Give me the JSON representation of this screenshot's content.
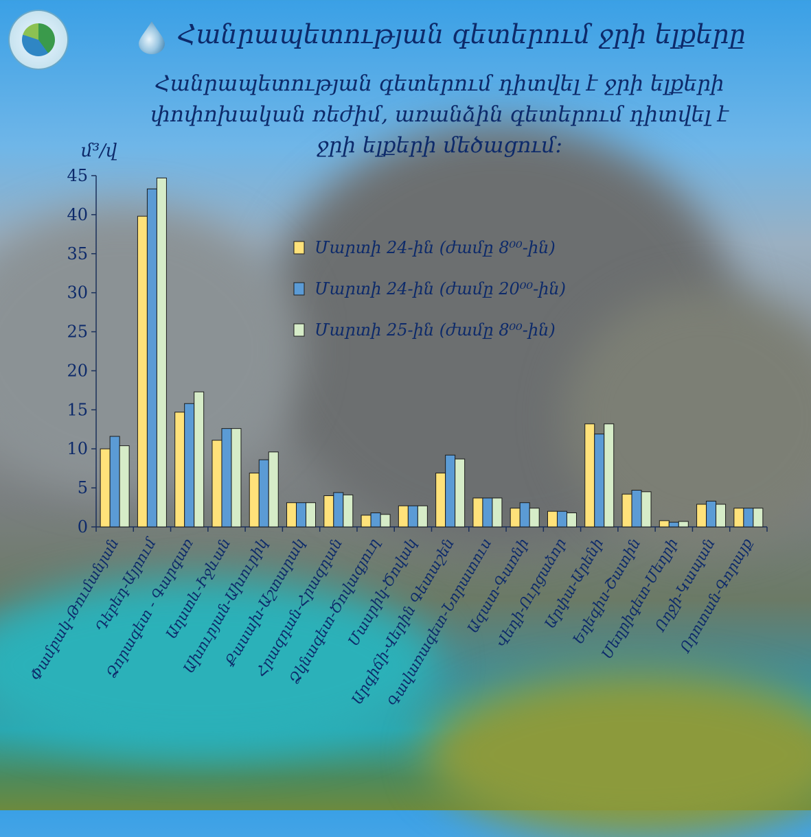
{
  "header": {
    "title": "Հանրապետության գետերում ջրի ելքերը",
    "subtitle": "Հանրապետության գետերում դիտվել է ջրի ելքերի փոփոխական ռեժիմ, առանձին գետերում դիտվել է ջրի ելքերի մեծացում:"
  },
  "unit_label": "մ³/վ",
  "chart_data": {
    "type": "bar",
    "title": "Հանրապետության գետերում ջրի ելքերը",
    "ylabel": "մ³/վ",
    "ylim": [
      0,
      45
    ],
    "yticks": [
      0,
      5,
      10,
      15,
      20,
      25,
      30,
      35,
      40,
      45
    ],
    "grid": false,
    "legend_position": "top-right",
    "categories": [
      "Փամբակ-Թումանյան",
      "Դեբեդ-Այրում",
      "Ձորագետ - Գարգառ",
      "Աղստև-Իջևան",
      "Ախուրյան-Ախուրիկ",
      "Քասախ-Աշտարակ",
      "Հրազդան-Հրազդան",
      "Ձկնագետ-Ծովագյուղ",
      "Մասրիկ-Ծովակ",
      "Արգիճի-Վերին Գետաշեն",
      "Գավառագետ-Նորատուս",
      "Ազատ-Գառնի",
      "Վեդի-Ուրցաձոր",
      "Արփա-Արենի",
      "Եղեգիս-Շատին",
      "Մեղրիգետ-Մեղրի",
      "Ողջի-Կապան",
      "Որոտան-Գորայք"
    ],
    "series": [
      {
        "name": "Մարտի 24-ին (ժամը 8⁰⁰-ին)",
        "color": "#ffe27a",
        "values": [
          10.0,
          39.8,
          14.7,
          11.1,
          6.9,
          3.1,
          4.0,
          1.5,
          2.7,
          6.9,
          3.7,
          2.4,
          2.0,
          13.2,
          4.2,
          0.8,
          2.9,
          2.4
        ]
      },
      {
        "name": "Մարտի 24-ին (ժամը 20⁰⁰-ին)",
        "color": "#5b9bd5",
        "values": [
          11.6,
          43.3,
          15.8,
          12.6,
          8.6,
          3.1,
          4.4,
          1.8,
          2.7,
          9.2,
          3.7,
          3.1,
          2.0,
          11.9,
          4.7,
          0.6,
          3.3,
          2.4
        ]
      },
      {
        "name": "Մարտի 25-ին (ժամը 8⁰⁰-ին)",
        "color": "#d6ecc8",
        "values": [
          10.4,
          44.7,
          17.3,
          12.6,
          9.6,
          3.1,
          4.1,
          1.6,
          2.7,
          8.7,
          3.7,
          2.4,
          1.8,
          13.2,
          4.5,
          0.7,
          2.9,
          2.4
        ]
      }
    ]
  },
  "colors": {
    "text": "#0d2a6a",
    "axis": "#1a2f5a"
  }
}
